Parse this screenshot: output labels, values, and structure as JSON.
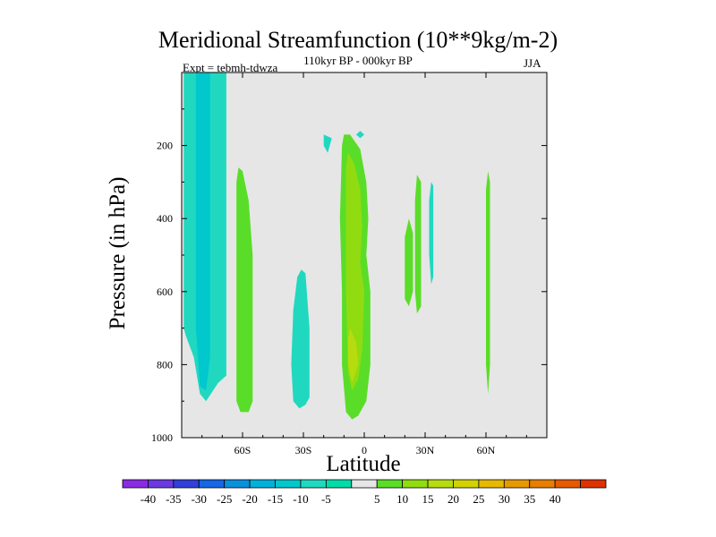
{
  "chart_data": {
    "type": "contour",
    "title": "Meridional Streamfunction (10**9kg/m-2)",
    "subtitle": "110kyr BP - 000kyr BP",
    "left_string": "Expt = tebmh-tdwza",
    "right_string": "JJA",
    "xlabel": "Latitude",
    "ylabel": "Pressure (in hPa)",
    "xlim": [
      -90,
      90
    ],
    "ylim": [
      1000,
      0
    ],
    "x_ticks": [
      {
        "value": -60,
        "label": "60S"
      },
      {
        "value": -30,
        "label": "30S"
      },
      {
        "value": 0,
        "label": "0"
      },
      {
        "value": 30,
        "label": "30N"
      },
      {
        "value": 60,
        "label": "60N"
      }
    ],
    "y_ticks": [
      {
        "value": 200,
        "label": "200"
      },
      {
        "value": 400,
        "label": "400"
      },
      {
        "value": 600,
        "label": "600"
      },
      {
        "value": 800,
        "label": "800"
      },
      {
        "value": 1000,
        "label": "1000"
      }
    ],
    "background_color": "#e6e6e6",
    "colorbar": {
      "colors": [
        "#8a2be2",
        "#6a3ae0",
        "#3040d8",
        "#1666e6",
        "#0a90dd",
        "#00b0dd",
        "#00c8cc",
        "#20d8c0",
        "#00dcaa",
        "#e6e6e6",
        "#5add28",
        "#90dc10",
        "#b6dc10",
        "#d2d200",
        "#e6b800",
        "#e69a00",
        "#e67e00",
        "#e65a00",
        "#dd3300"
      ],
      "labels": [
        "-40",
        "-35",
        "-30",
        "-25",
        "-20",
        "-15",
        "-10",
        "-5",
        "5",
        "10",
        "15",
        "20",
        "25",
        "30",
        "35",
        "40"
      ]
    },
    "regions": [
      {
        "name": "contour-region-sh-high-lat-minus5",
        "color": "#20d8c0",
        "points": [
          [
            -89,
            0
          ],
          [
            -68,
            0
          ],
          [
            -68,
            830
          ],
          [
            -72,
            850
          ],
          [
            -78,
            900
          ],
          [
            -81,
            880
          ],
          [
            -84,
            780
          ],
          [
            -88,
            720
          ],
          [
            -89,
            700
          ]
        ]
      },
      {
        "name": "contour-region-sh-high-lat-minus10",
        "color": "#00c8cc",
        "points": [
          [
            -83,
            0
          ],
          [
            -76,
            0
          ],
          [
            -76,
            780
          ],
          [
            -78,
            870
          ],
          [
            -81,
            860
          ],
          [
            -83,
            700
          ]
        ]
      },
      {
        "name": "contour-region-sh-plus5-60s",
        "color": "#5add28",
        "points": [
          [
            -62,
            260
          ],
          [
            -60,
            270
          ],
          [
            -57,
            350
          ],
          [
            -55,
            500
          ],
          [
            -55,
            900
          ],
          [
            -57,
            930
          ],
          [
            -61,
            930
          ],
          [
            -63,
            900
          ],
          [
            -63,
            400
          ],
          [
            -63,
            300
          ]
        ]
      },
      {
        "name": "contour-region-sh-minus5-30s",
        "color": "#20d8c0",
        "points": [
          [
            -31,
            540
          ],
          [
            -29,
            550
          ],
          [
            -27,
            700
          ],
          [
            -27,
            890
          ],
          [
            -29,
            910
          ],
          [
            -32,
            920
          ],
          [
            -35,
            900
          ],
          [
            -36,
            800
          ],
          [
            -35,
            650
          ],
          [
            -33,
            560
          ]
        ]
      },
      {
        "name": "contour-region-small-minus5-a",
        "color": "#20d8c0",
        "points": [
          [
            -20,
            170
          ],
          [
            -16,
            180
          ],
          [
            -18,
            220
          ],
          [
            -20,
            200
          ]
        ]
      },
      {
        "name": "contour-region-small-minus5-b",
        "color": "#20d8c0",
        "points": [
          [
            -2,
            160
          ],
          [
            0,
            170
          ],
          [
            -2,
            180
          ],
          [
            -4,
            170
          ]
        ]
      },
      {
        "name": "contour-region-eq-plus5",
        "color": "#5add28",
        "points": [
          [
            -10,
            170
          ],
          [
            -7,
            170
          ],
          [
            -2,
            210
          ],
          [
            1,
            300
          ],
          [
            2,
            400
          ],
          [
            1,
            500
          ],
          [
            3,
            600
          ],
          [
            3,
            800
          ],
          [
            1,
            900
          ],
          [
            -3,
            940
          ],
          [
            -6,
            950
          ],
          [
            -9,
            930
          ],
          [
            -11,
            800
          ],
          [
            -11,
            600
          ],
          [
            -12,
            400
          ],
          [
            -11,
            200
          ]
        ]
      },
      {
        "name": "contour-region-eq-plus10",
        "color": "#90dc10",
        "points": [
          [
            -8,
            220
          ],
          [
            -5,
            250
          ],
          [
            -2,
            320
          ],
          [
            -1,
            420
          ],
          [
            -2,
            520
          ],
          [
            0,
            600
          ],
          [
            -1,
            760
          ],
          [
            -3,
            840
          ],
          [
            -6,
            870
          ],
          [
            -8,
            820
          ],
          [
            -9,
            600
          ],
          [
            -9,
            400
          ],
          [
            -9,
            260
          ]
        ]
      },
      {
        "name": "contour-region-eq-plus15",
        "color": "#b6dc10",
        "points": [
          [
            -7,
            700
          ],
          [
            -4,
            740
          ],
          [
            -3,
            800
          ],
          [
            -6,
            850
          ],
          [
            -8,
            800
          ],
          [
            -8,
            730
          ]
        ]
      },
      {
        "name": "contour-region-nh-plus5-20n",
        "color": "#5add28",
        "points": [
          [
            22,
            400
          ],
          [
            24,
            440
          ],
          [
            24,
            600
          ],
          [
            22,
            640
          ],
          [
            20,
            620
          ],
          [
            20,
            450
          ]
        ]
      },
      {
        "name": "contour-region-nh-plus5-28n",
        "color": "#5add28",
        "points": [
          [
            26,
            280
          ],
          [
            28,
            300
          ],
          [
            28,
            640
          ],
          [
            26,
            660
          ],
          [
            25,
            600
          ],
          [
            25,
            350
          ]
        ]
      },
      {
        "name": "contour-region-nh-minus5-34n",
        "color": "#20d8c0",
        "points": [
          [
            33,
            300
          ],
          [
            34,
            310
          ],
          [
            34,
            560
          ],
          [
            33,
            580
          ],
          [
            32,
            500
          ],
          [
            32,
            350
          ]
        ]
      },
      {
        "name": "contour-region-nh-plus5-62n",
        "color": "#5add28",
        "points": [
          [
            61,
            270
          ],
          [
            62,
            300
          ],
          [
            62,
            800
          ],
          [
            61,
            880
          ],
          [
            60,
            800
          ],
          [
            60,
            320
          ]
        ]
      }
    ]
  }
}
